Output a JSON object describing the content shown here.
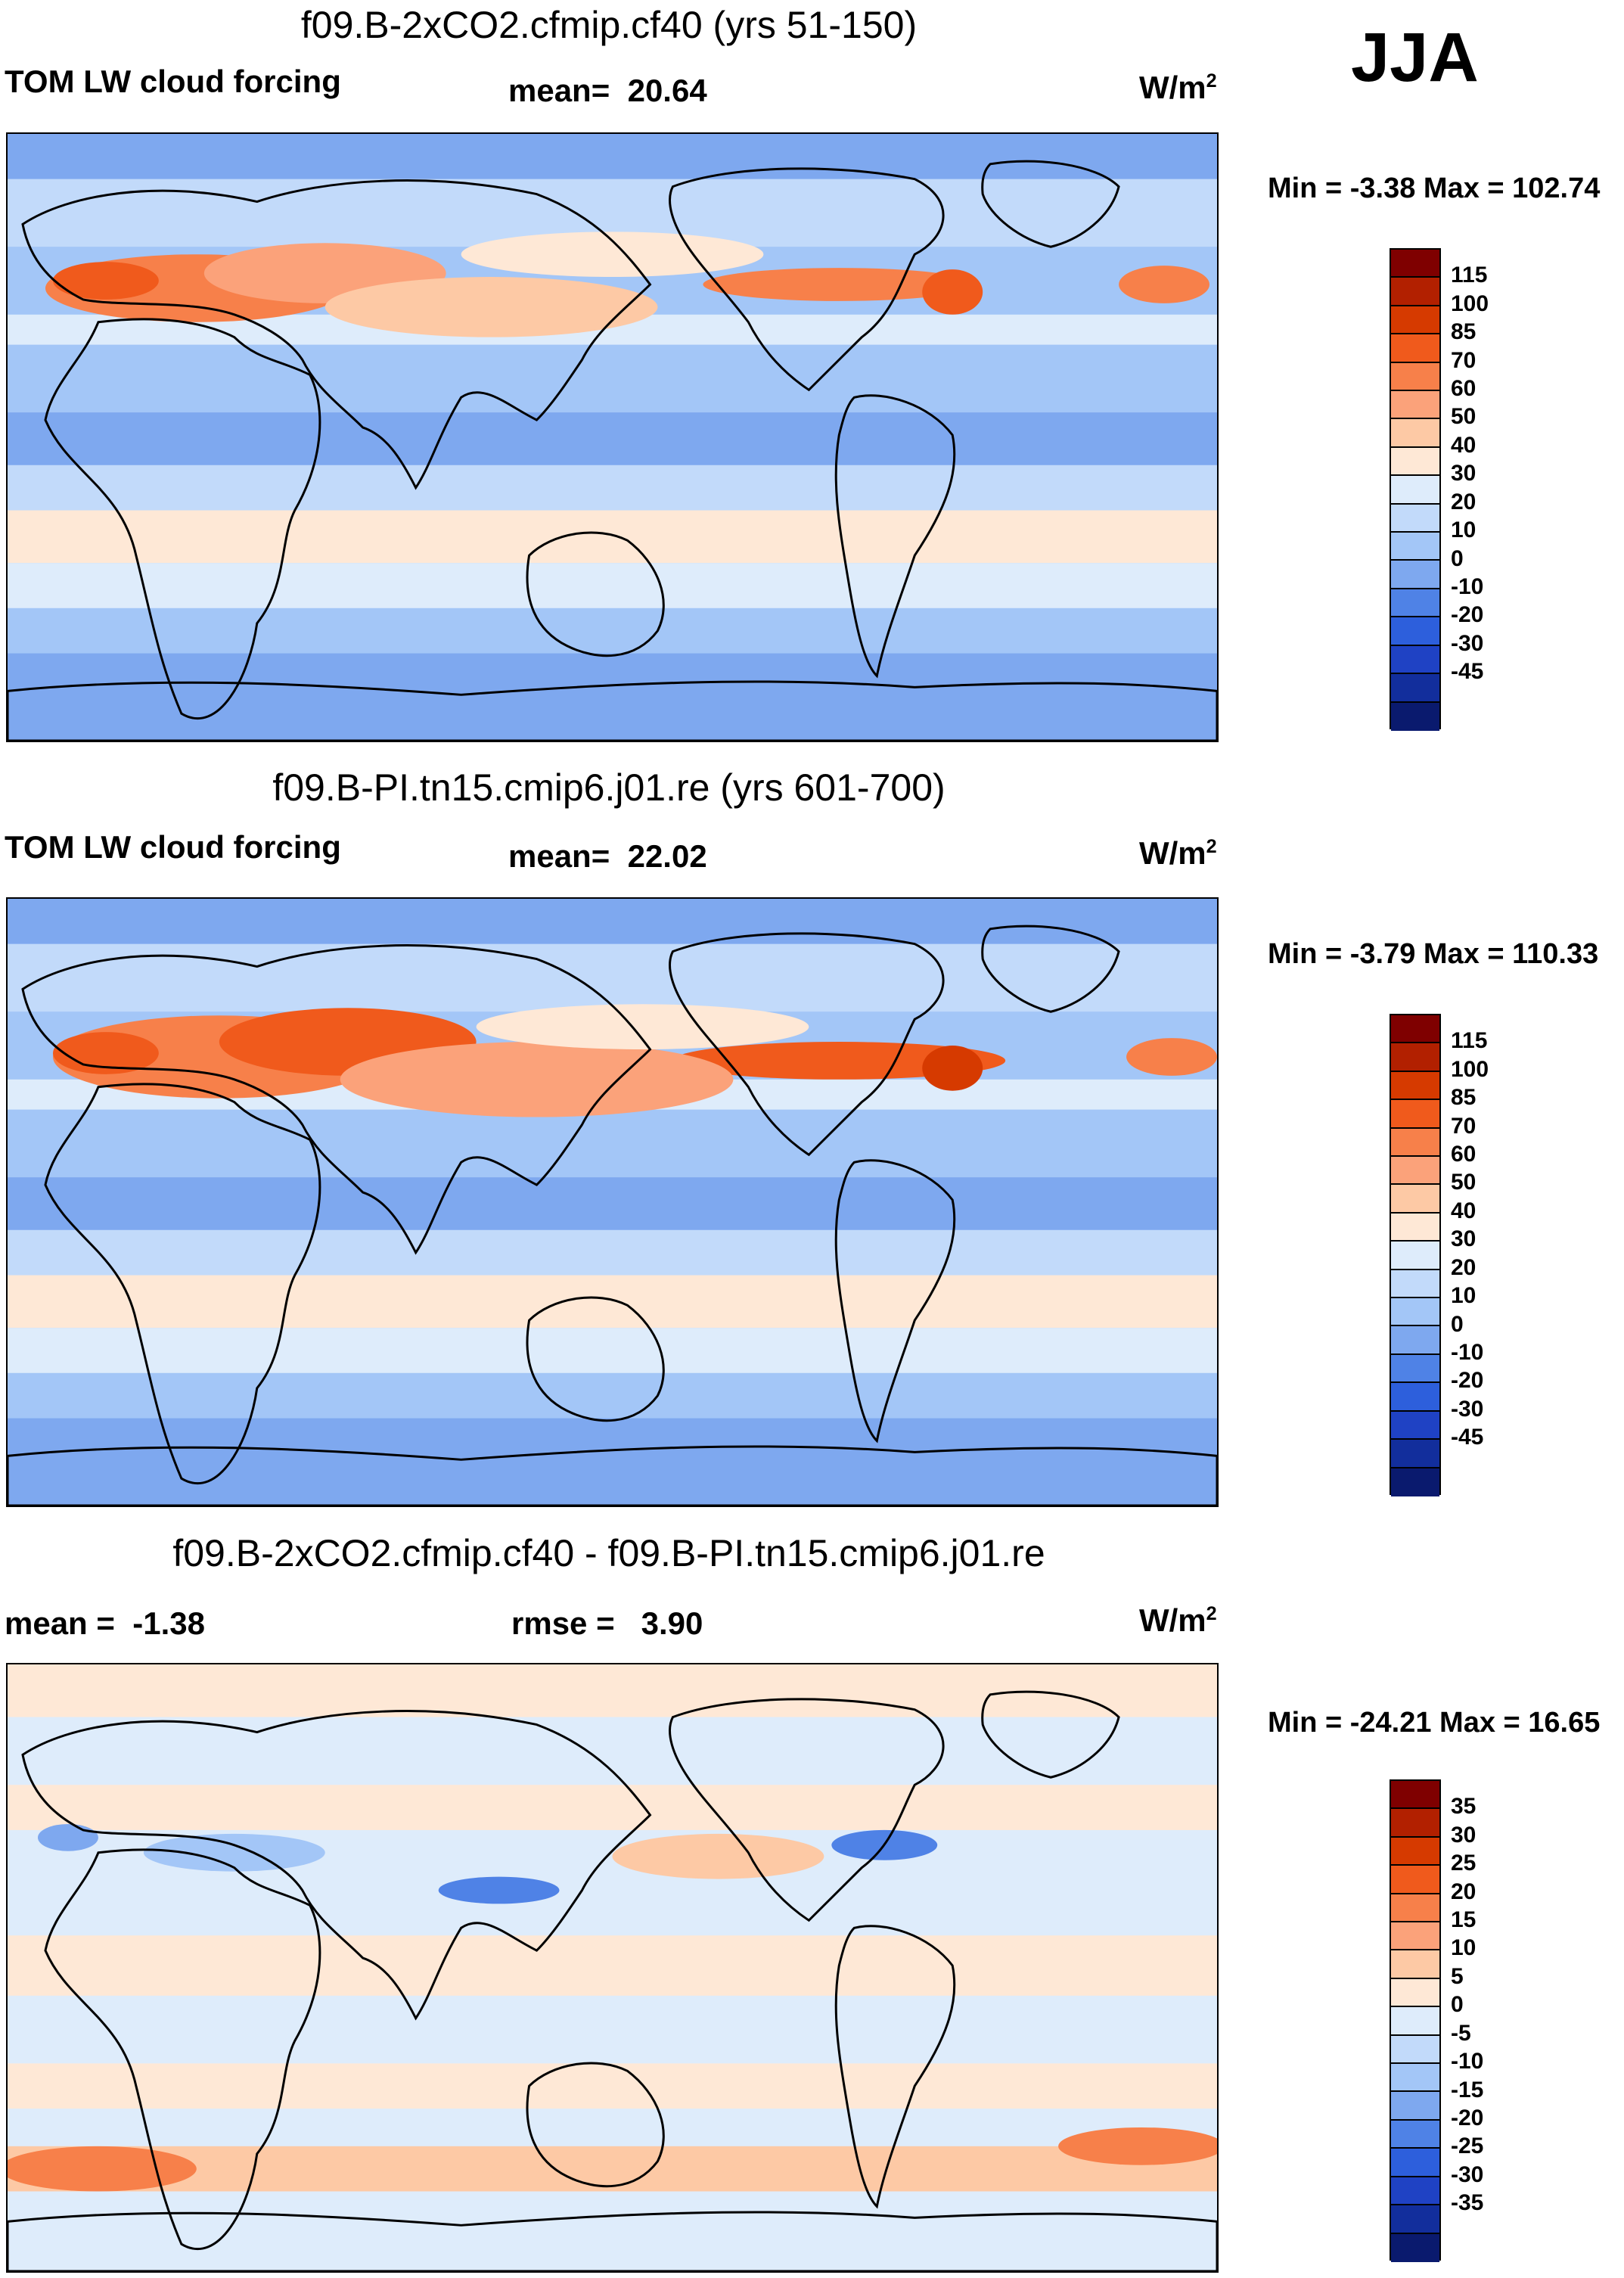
{
  "season": "JJA",
  "unit_base": "W/m",
  "unit_exp": "2",
  "panels": [
    {
      "title": "f09.B-2xCO2.cfmip.cf40 (yrs 51-150)",
      "variable": "TOM LW cloud forcing",
      "stat1_label": "mean=",
      "stat1_value": "20.64",
      "minmax": "Min =  -3.38 Max = 102.74"
    },
    {
      "title": "f09.B-PI.tn15.cmip6.j01.re (yrs 601-700)",
      "variable": "TOM LW cloud forcing",
      "stat1_label": "mean=",
      "stat1_value": "22.02",
      "minmax": "Min =  -3.79 Max = 110.33"
    },
    {
      "title": "f09.B-2xCO2.cfmip.cf40 - f09.B-PI.tn15.cmip6.j01.re",
      "stat0_label": "mean =",
      "stat0_value": "-1.38",
      "stat1_label": "rmse =",
      "stat1_value": "3.90",
      "minmax": "Min = -24.21 Max =  16.65"
    }
  ],
  "chart_data": [
    {
      "type": "heatmap",
      "title": "f09.B-2xCO2.cfmip.cf40 (yrs 51-150)",
      "field": "TOM LW cloud forcing",
      "units": "W/m2",
      "season": "JJA",
      "mean": 20.64,
      "min": -3.38,
      "max": 102.74,
      "colorbar_levels": [
        115,
        100,
        85,
        70,
        60,
        50,
        40,
        30,
        20,
        10,
        0,
        -10,
        -20,
        -30,
        -45
      ],
      "colors": [
        "#7f0000",
        "#b22000",
        "#d63a00",
        "#f05a1c",
        "#f7804a",
        "#fba27a",
        "#fdc9a5",
        "#fee8d6",
        "#deecfb",
        "#c2dafa",
        "#a3c6f7",
        "#7ea8ef",
        "#4f82e6",
        "#2d5fdc",
        "#1f42c4",
        "#122e9c",
        "#0a1a6e"
      ]
    },
    {
      "type": "heatmap",
      "title": "f09.B-PI.tn15.cmip6.j01.re (yrs 601-700)",
      "field": "TOM LW cloud forcing",
      "units": "W/m2",
      "season": "JJA",
      "mean": 22.02,
      "min": -3.79,
      "max": 110.33,
      "colorbar_levels": [
        115,
        100,
        85,
        70,
        60,
        50,
        40,
        30,
        20,
        10,
        0,
        -10,
        -20,
        -30,
        -45
      ],
      "colors": [
        "#7f0000",
        "#b22000",
        "#d63a00",
        "#f05a1c",
        "#f7804a",
        "#fba27a",
        "#fdc9a5",
        "#fee8d6",
        "#deecfb",
        "#c2dafa",
        "#a3c6f7",
        "#7ea8ef",
        "#4f82e6",
        "#2d5fdc",
        "#1f42c4",
        "#122e9c",
        "#0a1a6e"
      ]
    },
    {
      "type": "heatmap",
      "title": "f09.B-2xCO2.cfmip.cf40 - f09.B-PI.tn15.cmip6.j01.re",
      "field": "difference",
      "units": "W/m2",
      "mean": -1.38,
      "rmse": 3.9,
      "min": -24.21,
      "max": 16.65,
      "colorbar_levels": [
        35,
        30,
        25,
        20,
        15,
        10,
        5,
        0,
        -5,
        -10,
        -15,
        -20,
        -25,
        -30,
        -35
      ],
      "colors": [
        "#7f0000",
        "#b22000",
        "#d63a00",
        "#f05a1c",
        "#f7804a",
        "#fba27a",
        "#fdc9a5",
        "#fee8d6",
        "#deecfb",
        "#c2dafa",
        "#a3c6f7",
        "#7ea8ef",
        "#4f82e6",
        "#2d5fdc",
        "#1f42c4",
        "#122e9c",
        "#0a1a6e"
      ]
    }
  ]
}
